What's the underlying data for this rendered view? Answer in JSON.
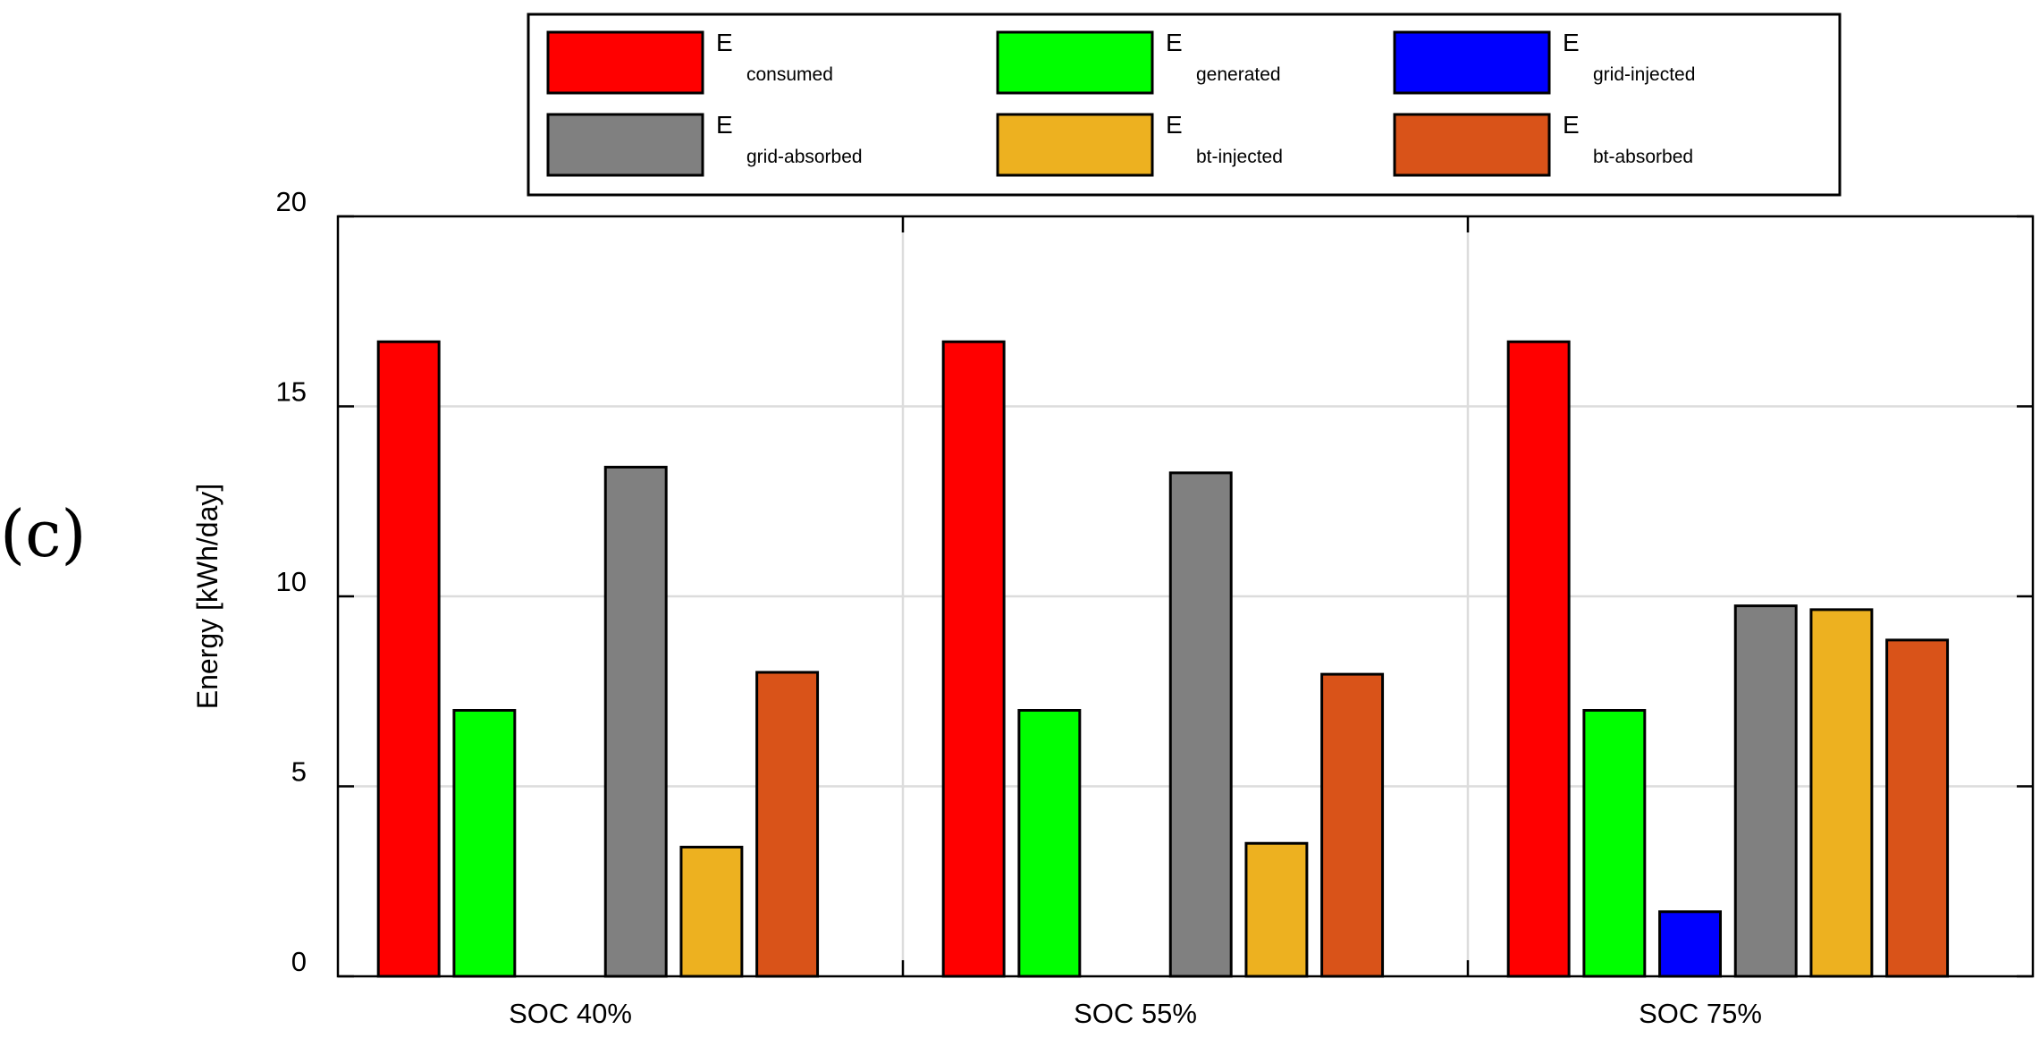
{
  "panel_label": "(c)",
  "chart_data": {
    "type": "bar",
    "title": "",
    "xlabel": "",
    "ylabel": "Energy [kWh/day]",
    "ylim": [
      0,
      20
    ],
    "yticks": [
      "0",
      "5",
      "10",
      "15",
      "20"
    ],
    "grid": true,
    "legend_position": "top",
    "categories": [
      "SOC 40%",
      "SOC 55%",
      "SOC 75%"
    ],
    "series": [
      {
        "name": "E",
        "sub": "consumed",
        "color": "#ff0000",
        "values": [
          16.7,
          16.7,
          16.7
        ]
      },
      {
        "name": "E",
        "sub": "generated",
        "color": "#00ff00",
        "values": [
          7.0,
          7.0,
          7.0
        ]
      },
      {
        "name": "E",
        "sub": "grid-injected",
        "color": "#0000ff",
        "values": [
          0,
          0,
          1.7
        ]
      },
      {
        "name": "E",
        "sub": "grid-absorbed",
        "color": "#808080",
        "values": [
          13.4,
          13.25,
          9.75
        ]
      },
      {
        "name": "E",
        "sub": "bt-injected",
        "color": "#edb120",
        "values": [
          3.4,
          3.5,
          9.65
        ]
      },
      {
        "name": "E",
        "sub": "bt-absorbed",
        "color": "#d95319",
        "values": [
          8.0,
          7.95,
          8.85
        ]
      }
    ]
  }
}
